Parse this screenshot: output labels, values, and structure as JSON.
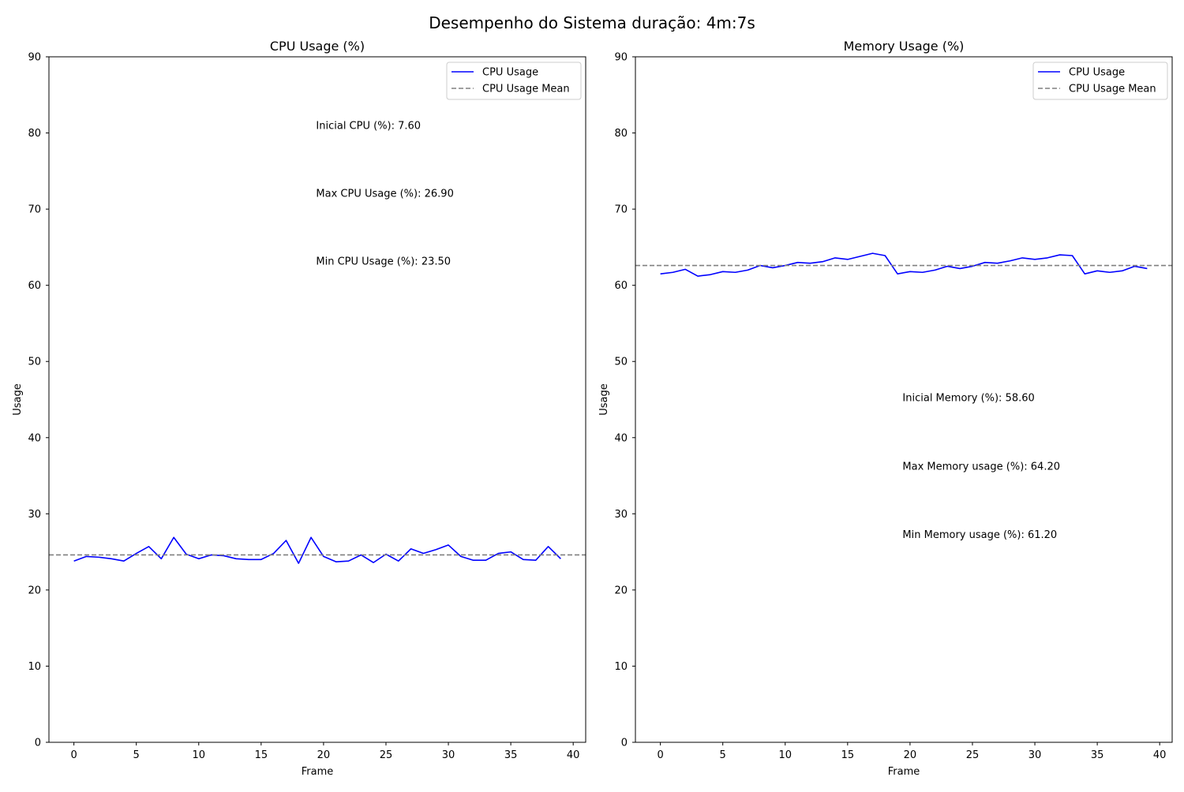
{
  "figure": {
    "suptitle": "Desempenho do Sistema duração: 4m:7s"
  },
  "chart_data": [
    {
      "type": "line",
      "title": "CPU Usage (%)",
      "xlabel": "Frame",
      "ylabel": "Usage",
      "xlim": [
        -2,
        41
      ],
      "ylim": [
        0,
        90
      ],
      "xticks": [
        0,
        5,
        10,
        15,
        20,
        25,
        30,
        35,
        40
      ],
      "yticks": [
        0,
        10,
        20,
        30,
        40,
        50,
        60,
        70,
        80,
        90
      ],
      "grid": false,
      "legend_position": "top-right",
      "series": [
        {
          "name": "CPU Usage",
          "color": "#0000ff",
          "style": "solid",
          "x": [
            0,
            1,
            2,
            3,
            4,
            5,
            6,
            7,
            8,
            9,
            10,
            11,
            12,
            13,
            14,
            15,
            16,
            17,
            18,
            19,
            20,
            21,
            22,
            23,
            24,
            25,
            26,
            27,
            28,
            29,
            30,
            31,
            32,
            33,
            34,
            35,
            36,
            37,
            38,
            39
          ],
          "y": [
            23.8,
            24.4,
            24.3,
            24.1,
            23.8,
            24.8,
            25.7,
            24.1,
            26.9,
            24.7,
            24.1,
            24.6,
            24.5,
            24.1,
            24.0,
            24.0,
            24.8,
            26.5,
            23.5,
            26.9,
            24.4,
            23.7,
            23.8,
            24.6,
            23.6,
            24.7,
            23.8,
            25.4,
            24.8,
            25.3,
            25.9,
            24.4,
            23.9,
            23.9,
            24.8,
            25.0,
            24.0,
            23.9,
            25.7,
            24.1
          ]
        },
        {
          "name": "CPU Usage Mean",
          "color": "#808080",
          "style": "dashed",
          "hline": 24.6
        }
      ],
      "annotations": [
        {
          "text": "Inicial CPU (%): 7.60",
          "x": 19.4,
          "y": 80.5
        },
        {
          "text": "Max CPU Usage (%): 26.90",
          "x": 19.4,
          "y": 71.6
        },
        {
          "text": "Min CPU Usage (%): 23.50",
          "x": 19.4,
          "y": 62.7
        }
      ]
    },
    {
      "type": "line",
      "title": "Memory Usage (%)",
      "xlabel": "Frame",
      "ylabel": "Usage",
      "xlim": [
        -2,
        41
      ],
      "ylim": [
        0,
        90
      ],
      "xticks": [
        0,
        5,
        10,
        15,
        20,
        25,
        30,
        35,
        40
      ],
      "yticks": [
        0,
        10,
        20,
        30,
        40,
        50,
        60,
        70,
        80,
        90
      ],
      "grid": false,
      "legend_position": "top-right",
      "series": [
        {
          "name": "CPU Usage",
          "color": "#0000ff",
          "style": "solid",
          "x": [
            0,
            1,
            2,
            3,
            4,
            5,
            6,
            7,
            8,
            9,
            10,
            11,
            12,
            13,
            14,
            15,
            16,
            17,
            18,
            19,
            20,
            21,
            22,
            23,
            24,
            25,
            26,
            27,
            28,
            29,
            30,
            31,
            32,
            33,
            34,
            35,
            36,
            37,
            38,
            39
          ],
          "y": [
            61.5,
            61.7,
            62.1,
            61.2,
            61.4,
            61.8,
            61.7,
            62.0,
            62.6,
            62.3,
            62.6,
            63.0,
            62.9,
            63.1,
            63.6,
            63.4,
            63.8,
            64.2,
            63.9,
            61.5,
            61.8,
            61.7,
            62.0,
            62.5,
            62.2,
            62.5,
            63.0,
            62.9,
            63.2,
            63.6,
            63.4,
            63.6,
            64.0,
            63.9,
            61.5,
            61.9,
            61.7,
            61.9,
            62.5,
            62.2
          ]
        },
        {
          "name": "CPU Usage Mean",
          "color": "#808080",
          "style": "dashed",
          "hline": 62.6
        }
      ],
      "annotations": [
        {
          "text": "Inicial Memory (%): 58.60",
          "x": 19.4,
          "y": 44.8
        },
        {
          "text": "Max Memory usage (%): 64.20",
          "x": 19.4,
          "y": 35.8
        },
        {
          "text": "Min Memory usage (%): 61.20",
          "x": 19.4,
          "y": 26.8
        }
      ]
    }
  ]
}
